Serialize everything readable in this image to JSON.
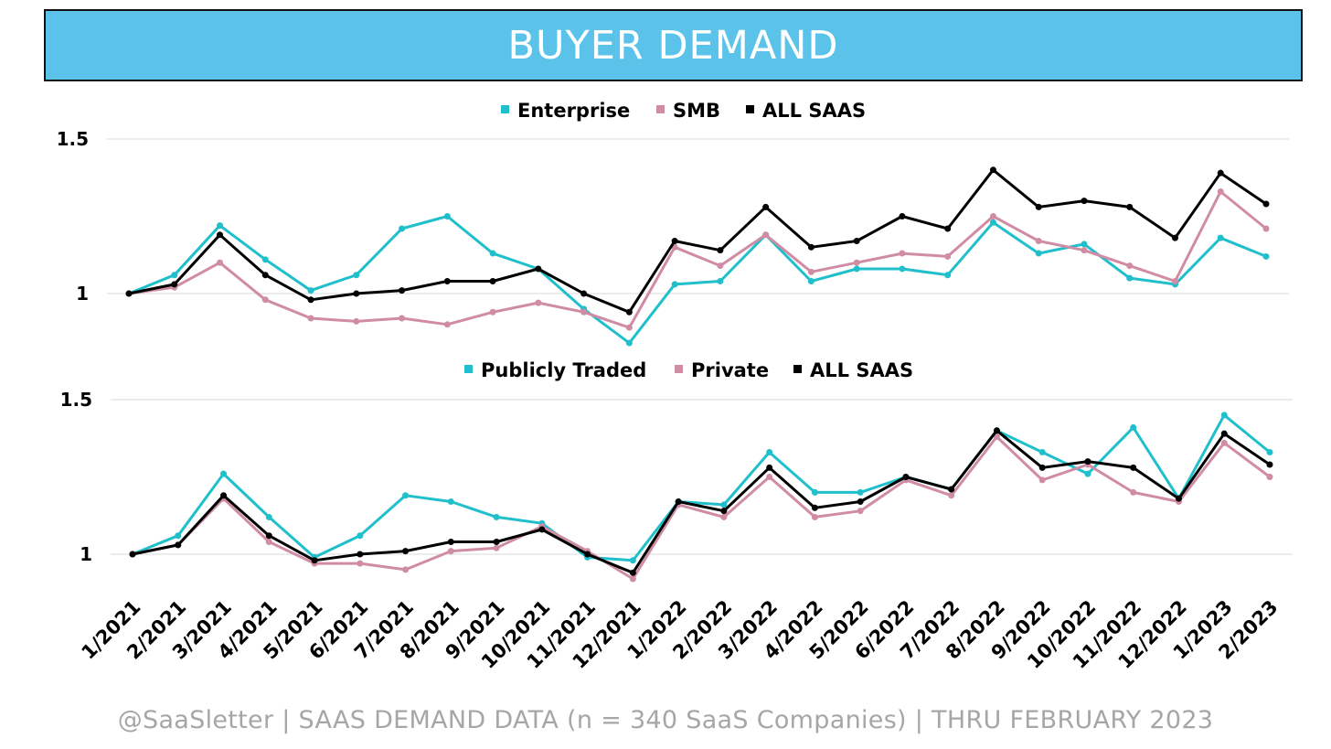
{
  "header": {
    "title": "BUYER DEMAND"
  },
  "footer": {
    "text": "@SaaSletter | SAAS DEMAND DATA (n = 340 SaaS Companies) | THRU FEBRUARY 2023"
  },
  "colors": {
    "teal": "#1fbfcb",
    "pink": "#d08ca5",
    "black": "#000000",
    "title_bg": "#5bc3ea"
  },
  "chart_data": [
    {
      "type": "line",
      "x": [
        "1/2021",
        "2/2021",
        "3/2021",
        "4/2021",
        "5/2021",
        "6/2021",
        "7/2021",
        "8/2021",
        "9/2021",
        "10/2021",
        "11/2021",
        "12/2021",
        "1/2022",
        "2/2022",
        "3/2022",
        "4/2022",
        "5/2022",
        "6/2022",
        "7/2022",
        "8/2022",
        "9/2022",
        "10/2022",
        "11/2022",
        "12/2022",
        "1/2023",
        "2/2023"
      ],
      "y_ticks": [
        {
          "value": 1,
          "label": "1"
        },
        {
          "value": 1.5,
          "label": "1.5"
        }
      ],
      "ylim": [
        0.84,
        1.5
      ],
      "legend": "top-center",
      "grid": true,
      "series": [
        {
          "name": "Enterprise",
          "color": "#1fbfcb",
          "values": [
            1.0,
            1.06,
            1.22,
            1.11,
            1.01,
            1.06,
            1.21,
            1.25,
            1.13,
            1.08,
            0.95,
            0.84,
            1.03,
            1.04,
            1.19,
            1.04,
            1.08,
            1.08,
            1.06,
            1.23,
            1.13,
            1.16,
            1.05,
            1.03,
            1.18,
            1.12
          ]
        },
        {
          "name": "SMB",
          "color": "#d08ca5",
          "values": [
            1.0,
            1.02,
            1.1,
            0.98,
            0.92,
            0.91,
            0.92,
            0.9,
            0.94,
            0.97,
            0.94,
            0.89,
            1.15,
            1.09,
            1.19,
            1.07,
            1.1,
            1.13,
            1.12,
            1.25,
            1.17,
            1.14,
            1.09,
            1.04,
            1.33,
            1.21
          ]
        },
        {
          "name": "ALL SAAS",
          "color": "#000000",
          "values": [
            1.0,
            1.03,
            1.19,
            1.06,
            0.98,
            1.0,
            1.01,
            1.04,
            1.04,
            1.08,
            1.0,
            0.94,
            1.17,
            1.14,
            1.28,
            1.15,
            1.17,
            1.25,
            1.21,
            1.4,
            1.28,
            1.3,
            1.28,
            1.18,
            1.39,
            1.29
          ]
        }
      ]
    },
    {
      "type": "line",
      "x": [
        "1/2021",
        "2/2021",
        "3/2021",
        "4/2021",
        "5/2021",
        "6/2021",
        "7/2021",
        "8/2021",
        "9/2021",
        "10/2021",
        "11/2021",
        "12/2021",
        "1/2022",
        "2/2022",
        "3/2022",
        "4/2022",
        "5/2022",
        "6/2022",
        "7/2022",
        "8/2022",
        "9/2022",
        "10/2022",
        "11/2022",
        "12/2022",
        "1/2023",
        "2/2023"
      ],
      "x_tick_labels": [
        "1/2021",
        "2/2021",
        "3/2021",
        "4/2021",
        "5/2021",
        "6/2021",
        "7/2021",
        "8/2021",
        "9/2021",
        "10/2021",
        "11/2021",
        "12/2021",
        "1/2022",
        "2/2022",
        "3/2022",
        "4/2022",
        "5/2022",
        "6/2022",
        "7/2022",
        "8/2022",
        "9/2022",
        "10/2022",
        "11/2022",
        "12/2022",
        "1/2023",
        "2/2023"
      ],
      "y_ticks": [
        {
          "value": 1,
          "label": "1"
        },
        {
          "value": 1.5,
          "label": "1.5"
        }
      ],
      "ylim": [
        0.92,
        1.5
      ],
      "legend": "top-center",
      "grid": true,
      "series": [
        {
          "name": "Publicly Traded",
          "color": "#1fbfcb",
          "values": [
            1.0,
            1.06,
            1.26,
            1.12,
            0.99,
            1.06,
            1.19,
            1.17,
            1.12,
            1.1,
            0.99,
            0.98,
            1.17,
            1.16,
            1.33,
            1.2,
            1.2,
            1.25,
            1.21,
            1.4,
            1.33,
            1.26,
            1.41,
            1.18,
            1.45,
            1.33
          ]
        },
        {
          "name": "Private",
          "color": "#d08ca5",
          "values": [
            1.0,
            1.03,
            1.18,
            1.04,
            0.97,
            0.97,
            0.95,
            1.01,
            1.02,
            1.09,
            1.01,
            0.92,
            1.16,
            1.12,
            1.25,
            1.12,
            1.14,
            1.24,
            1.19,
            1.38,
            1.24,
            1.29,
            1.2,
            1.17,
            1.36,
            1.25
          ]
        },
        {
          "name": "ALL SAAS",
          "color": "#000000",
          "values": [
            1.0,
            1.03,
            1.19,
            1.06,
            0.98,
            1.0,
            1.01,
            1.04,
            1.04,
            1.08,
            1.0,
            0.94,
            1.17,
            1.14,
            1.28,
            1.15,
            1.17,
            1.25,
            1.21,
            1.4,
            1.28,
            1.3,
            1.28,
            1.18,
            1.39,
            1.29
          ]
        }
      ]
    }
  ]
}
